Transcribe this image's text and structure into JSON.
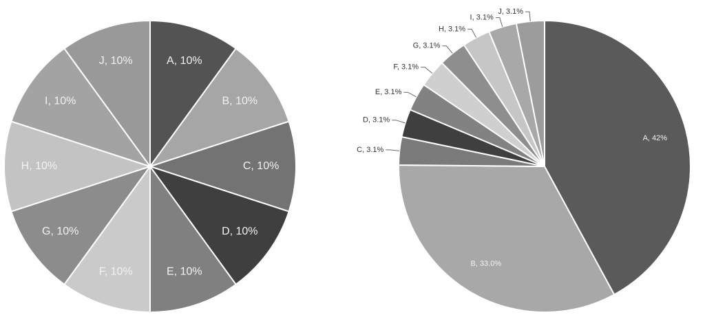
{
  "chart_data": [
    {
      "type": "pie",
      "categories": [
        "A",
        "B",
        "C",
        "D",
        "E",
        "F",
        "G",
        "H",
        "I",
        "J"
      ],
      "values": [
        10,
        10,
        10,
        10,
        10,
        10,
        10,
        10,
        10,
        10
      ],
      "labels": [
        "A, 10%",
        "B, 10%",
        "C, 10%",
        "D, 10%",
        "E, 10%",
        "F, 10%",
        "G, 10%",
        "H, 10%",
        "I, 10%",
        "J, 10%"
      ],
      "colors": [
        "#535353",
        "#a6a6a6",
        "#737373",
        "#3f3f3f",
        "#808080",
        "#cacaca",
        "#8c8c8c",
        "#c3c3c3",
        "#a3a3a3",
        "#999999"
      ],
      "label_position": "inside",
      "start_angle_deg": 0,
      "direction": "clockwise"
    },
    {
      "type": "pie",
      "categories": [
        "A",
        "B",
        "C",
        "D",
        "E",
        "F",
        "G",
        "H",
        "I",
        "J"
      ],
      "values": [
        42,
        33.0,
        3.1,
        3.1,
        3.1,
        3.1,
        3.1,
        3.1,
        3.1,
        3.1
      ],
      "labels": [
        "A, 42%",
        "B, 33.0%",
        "C, 3.1%",
        "D, 3.1%",
        "E, 3.1%",
        "F, 3.1%",
        "G, 3.1%",
        "H, 3.1%",
        "I, 3.1%",
        "J, 3.1%"
      ],
      "colors": [
        "#5a5a5a",
        "#a8a8a8",
        "#7a7a7a",
        "#3f3f3f",
        "#828282",
        "#cfcfcf",
        "#8e8e8e",
        "#c6c6c6",
        "#a8a8a8",
        "#9c9c9c"
      ],
      "label_position": "inside for large slices, outside with leader lines for small slices",
      "start_angle_deg": 0,
      "direction": "clockwise"
    }
  ]
}
